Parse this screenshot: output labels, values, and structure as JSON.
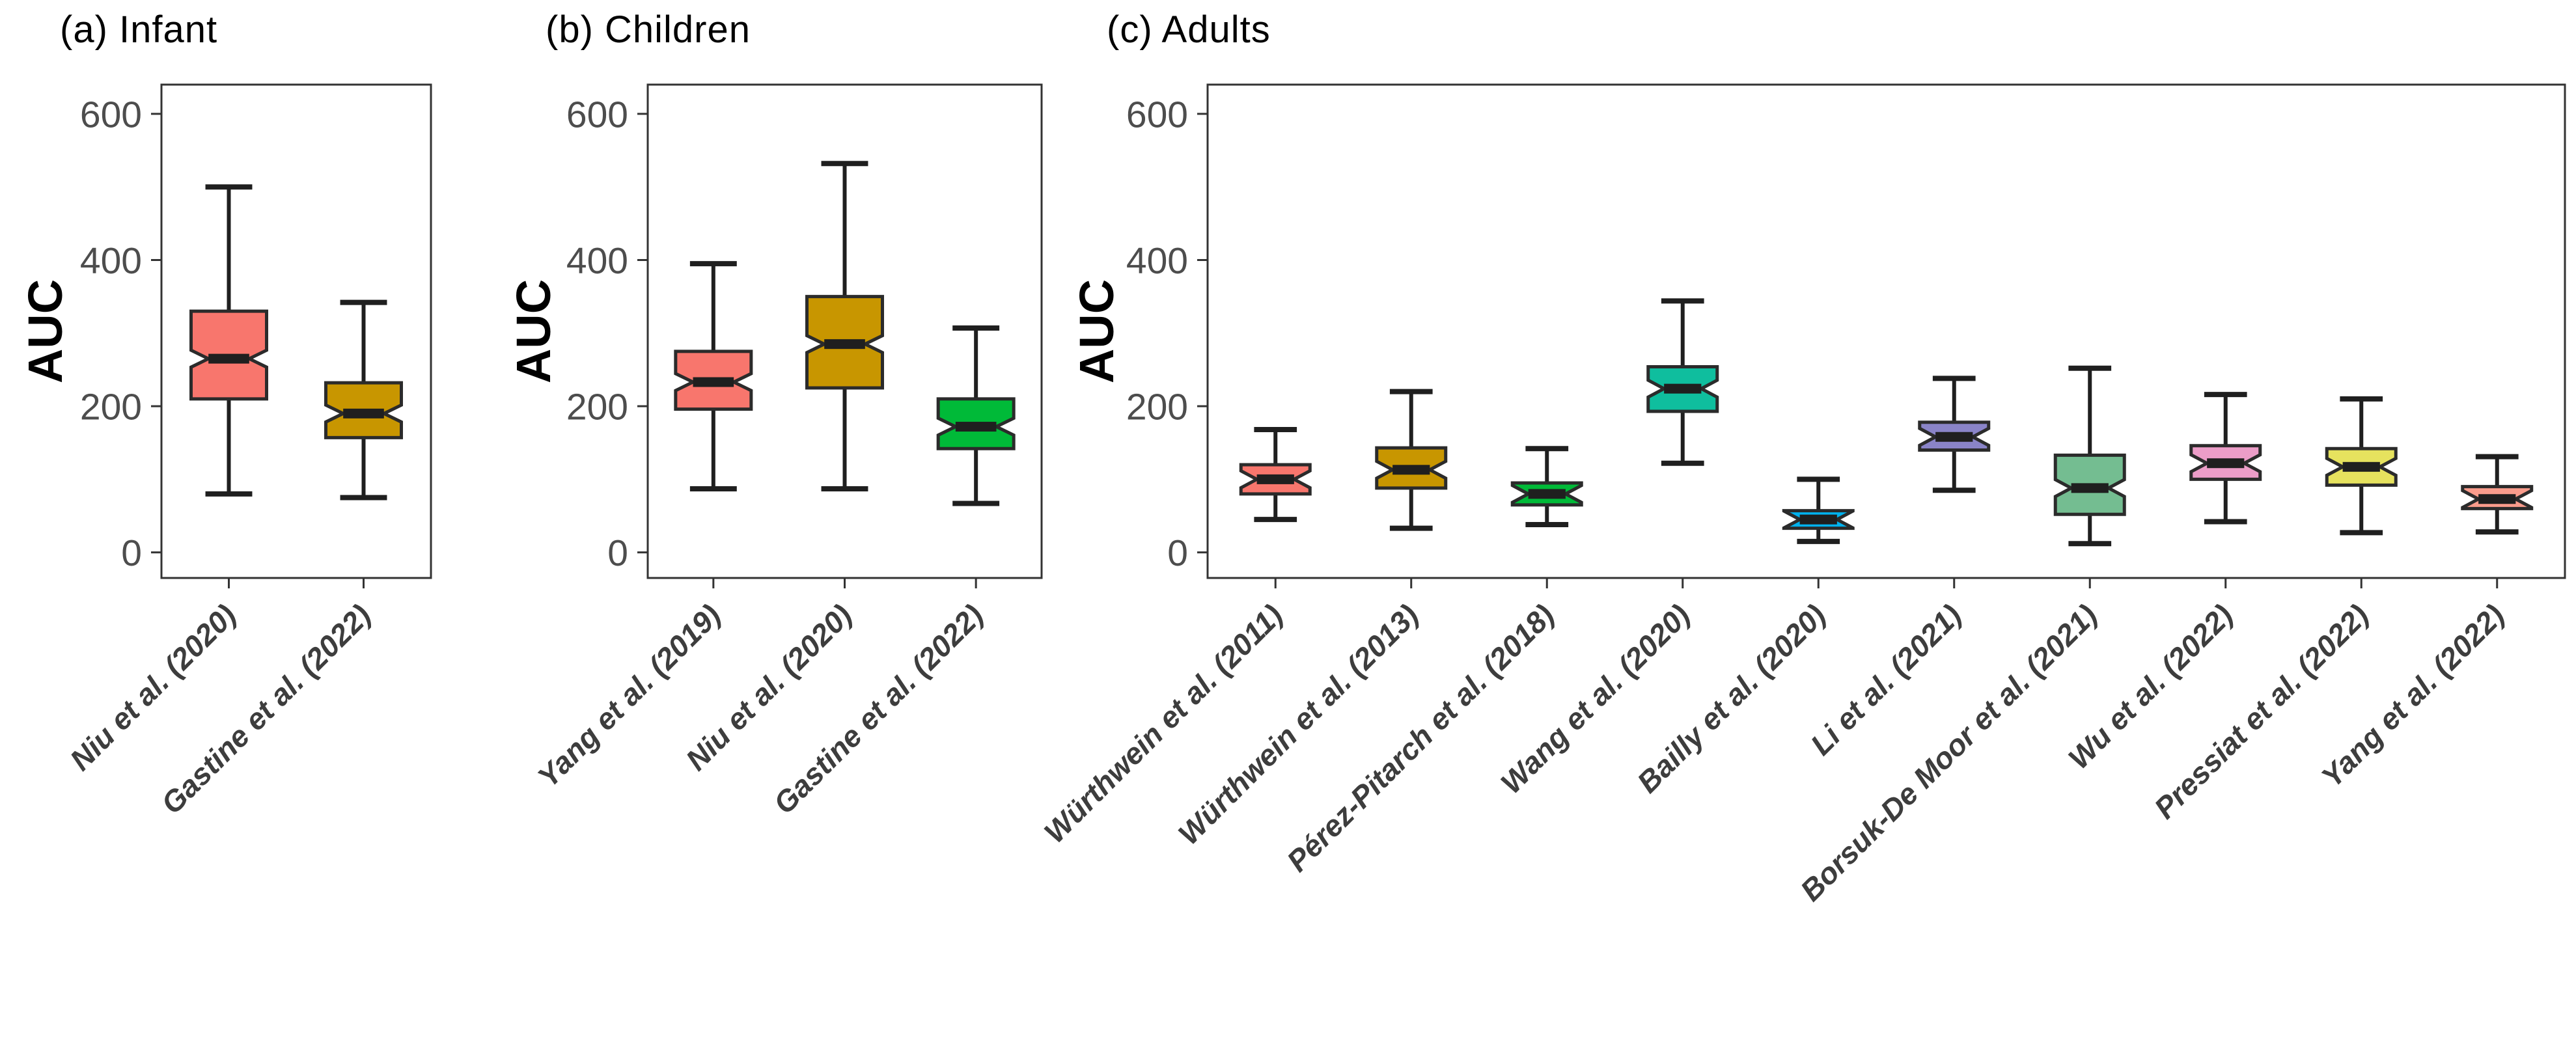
{
  "figure": {
    "background": "#FFFFFF",
    "axis_line_color": "#333333",
    "box_outline_color": "#2b2b2b",
    "median_color": "#1f1f1f",
    "tick_label_color": "#4d4d4d",
    "category_label_color": "#3d3d3d"
  },
  "chart_data": [
    {
      "type": "boxplot",
      "panel": "a",
      "title": "(a) Infant",
      "ylabel": "AUC",
      "ylim": [
        -35,
        640
      ],
      "yticks": [
        0,
        200,
        400,
        600
      ],
      "grid": false,
      "legend": "none",
      "categories": [
        "Niu et al. (2020)",
        "Gastine et al. (2022)"
      ],
      "boxes": [
        {
          "label": "Niu et al. (2020)",
          "color": "#F8766D",
          "low": 80,
          "q1": 210,
          "median": 265,
          "q3": 330,
          "high": 500
        },
        {
          "label": "Gastine et al. (2022)",
          "color": "#C89600",
          "low": 75,
          "q1": 157,
          "median": 190,
          "q3": 232,
          "high": 342
        }
      ]
    },
    {
      "type": "boxplot",
      "panel": "b",
      "title": "(b) Children",
      "ylabel": "AUC",
      "ylim": [
        -35,
        640
      ],
      "yticks": [
        0,
        200,
        400,
        600
      ],
      "grid": false,
      "legend": "none",
      "categories": [
        "Yang et al. (2019)",
        "Niu et al. (2020)",
        "Gastine et al. (2022)"
      ],
      "boxes": [
        {
          "label": "Yang et al. (2019)",
          "color": "#F8766D",
          "low": 87,
          "q1": 196,
          "median": 233,
          "q3": 275,
          "high": 395
        },
        {
          "label": "Niu et al. (2020)",
          "color": "#C89600",
          "low": 87,
          "q1": 225,
          "median": 285,
          "q3": 350,
          "high": 532
        },
        {
          "label": "Gastine et al. (2022)",
          "color": "#00BA38",
          "low": 67,
          "q1": 142,
          "median": 172,
          "q3": 210,
          "high": 307
        }
      ]
    },
    {
      "type": "boxplot",
      "panel": "c",
      "title": "(c) Adults",
      "ylabel": "AUC",
      "ylim": [
        -35,
        640
      ],
      "yticks": [
        0,
        200,
        400,
        600
      ],
      "grid": false,
      "legend": "none",
      "categories": [
        "Würthwein et al. (2011)",
        "Würthwein et al. (2013)",
        "Pérez-Pitarch et al. (2018)",
        "Wang et al. (2020)",
        "Bailly et al. (2020)",
        "Li et al. (2021)",
        "Borsuk-De Moor et al. (2021)",
        "Wu et al. (2022)",
        "Pressiat et al. (2022)",
        "Yang et al. (2022)"
      ],
      "boxes": [
        {
          "label": "Würthwein et al. (2011)",
          "color": "#F8766D",
          "low": 45,
          "q1": 80,
          "median": 100,
          "q3": 120,
          "high": 168
        },
        {
          "label": "Würthwein et al. (2013)",
          "color": "#C89600",
          "low": 33,
          "q1": 88,
          "median": 113,
          "q3": 143,
          "high": 220
        },
        {
          "label": "Pérez-Pitarch et al. (2018)",
          "color": "#00BA38",
          "low": 38,
          "q1": 65,
          "median": 80,
          "q3": 95,
          "high": 142
        },
        {
          "label": "Wang et al. (2020)",
          "color": "#0FBE9E",
          "low": 122,
          "q1": 193,
          "median": 224,
          "q3": 254,
          "high": 344
        },
        {
          "label": "Bailly et al. (2020)",
          "color": "#00B2EE",
          "low": 15,
          "q1": 33,
          "median": 45,
          "q3": 57,
          "high": 100
        },
        {
          "label": "Li et al. (2021)",
          "color": "#8A84C8",
          "low": 85,
          "q1": 140,
          "median": 158,
          "q3": 178,
          "high": 238
        },
        {
          "label": "Borsuk-De Moor et al. (2021)",
          "color": "#74BD91",
          "low": 12,
          "q1": 52,
          "median": 88,
          "q3": 133,
          "high": 252
        },
        {
          "label": "Wu et al. (2022)",
          "color": "#EC9DC8",
          "low": 42,
          "q1": 100,
          "median": 122,
          "q3": 146,
          "high": 216
        },
        {
          "label": "Pressiat et al. (2022)",
          "color": "#E6E25E",
          "low": 27,
          "q1": 92,
          "median": 117,
          "q3": 142,
          "high": 210
        },
        {
          "label": "Yang et al. (2022)",
          "color": "#FA9C8C",
          "low": 28,
          "q1": 60,
          "median": 73,
          "q3": 90,
          "high": 131
        }
      ]
    }
  ]
}
